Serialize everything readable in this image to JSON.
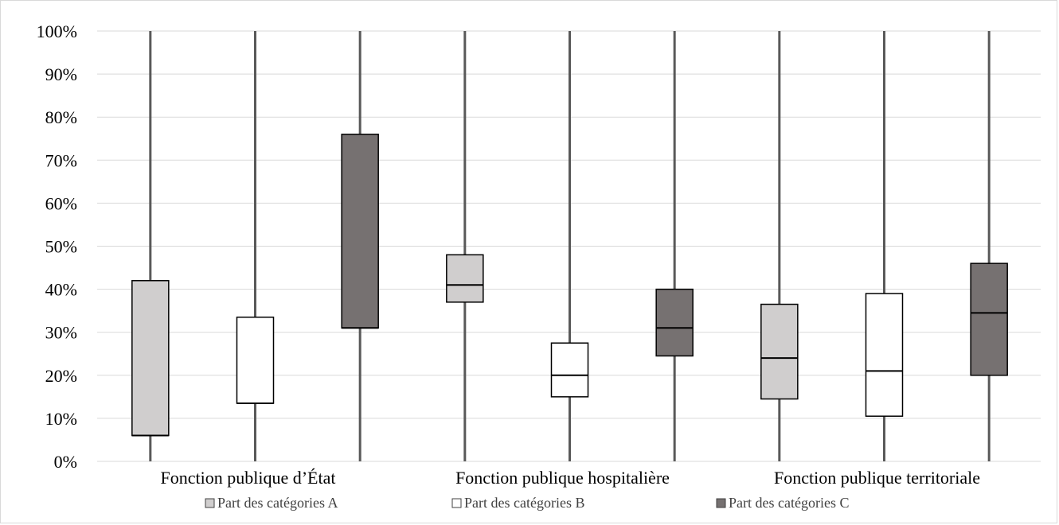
{
  "chart_data": {
    "type": "boxplot",
    "title": "",
    "xlabel": "",
    "ylabel": "",
    "ylim": [
      0,
      100
    ],
    "y_unit": "%",
    "y_ticks": [
      "0%",
      "10%",
      "20%",
      "30%",
      "40%",
      "50%",
      "60%",
      "70%",
      "80%",
      "90%",
      "100%"
    ],
    "grid": true,
    "legend_position": "bottom",
    "categories": [
      "Fonction publique d’État",
      "Fonction publique hospitalière",
      "Fonction publique territoriale"
    ],
    "series": [
      {
        "name": "Part des catégories A",
        "color": "#d0cece",
        "boxes": [
          {
            "whisker_low": 0,
            "q1": 6,
            "median": 6,
            "q3": 42,
            "whisker_high": 100
          },
          {
            "whisker_low": 0,
            "q1": 37,
            "median": 41,
            "q3": 48,
            "whisker_high": 100
          },
          {
            "whisker_low": 0,
            "q1": 14.5,
            "median": 24,
            "q3": 36.5,
            "whisker_high": 100
          }
        ]
      },
      {
        "name": "Part des catégories B",
        "color": "#ffffff",
        "boxes": [
          {
            "whisker_low": 0,
            "q1": 13.5,
            "median": 13.5,
            "q3": 33.5,
            "whisker_high": 100
          },
          {
            "whisker_low": 0,
            "q1": 15,
            "median": 20,
            "q3": 27.5,
            "whisker_high": 100
          },
          {
            "whisker_low": 0,
            "q1": 10.5,
            "median": 21,
            "q3": 39,
            "whisker_high": 100
          }
        ]
      },
      {
        "name": "Part des catégories C",
        "color": "#767171",
        "boxes": [
          {
            "whisker_low": 0,
            "q1": 31,
            "median": 31,
            "q3": 76,
            "whisker_high": 100
          },
          {
            "whisker_low": 0,
            "q1": 24.5,
            "median": 31,
            "q3": 40,
            "whisker_high": 100
          },
          {
            "whisker_low": 0,
            "q1": 20,
            "median": 34.5,
            "q3": 46,
            "whisker_high": 100
          }
        ]
      }
    ]
  }
}
